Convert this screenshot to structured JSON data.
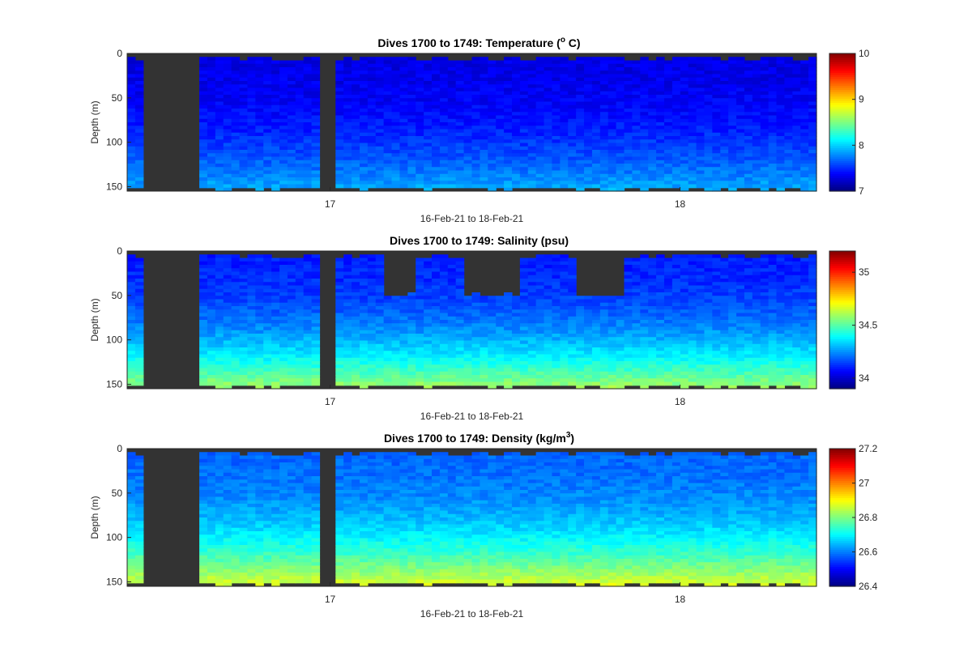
{
  "figure": {
    "x_axis_label": "16-Feb-21 to 18-Feb-21",
    "y_axis_label": "Depth (m)",
    "no_data_color": "#333333"
  },
  "chart_data": [
    {
      "type": "heatmap",
      "title_prefix": "Dives 1700 to 1749: Temperature (",
      "title_sup": "o",
      "title_suffix": " C)",
      "xlabel": "16-Feb-21 to 18-Feb-21",
      "ylabel": "Depth (m)",
      "x_range_days": [
        16.42,
        18.39
      ],
      "ylim": [
        0,
        155
      ],
      "y_ticks": [
        "0",
        "50",
        "100",
        "150"
      ],
      "x_ticks": [
        "17",
        "18"
      ],
      "colormap": "jet",
      "clim": [
        7,
        10
      ],
      "colorbar_ticks": [
        "7",
        "8",
        "9",
        "10"
      ],
      "surface_value": 7.3,
      "bottom_value": 7.9
    },
    {
      "type": "heatmap",
      "title_prefix": "Dives 1700 to 1749: Salinity (psu)",
      "title_sup": "",
      "title_suffix": "",
      "xlabel": "16-Feb-21 to 18-Feb-21",
      "ylabel": "Depth (m)",
      "x_range_days": [
        16.42,
        18.39
      ],
      "ylim": [
        0,
        155
      ],
      "y_ticks": [
        "0",
        "50",
        "100",
        "150"
      ],
      "x_ticks": [
        "17",
        "18"
      ],
      "colormap": "jet",
      "clim": [
        33.9,
        35.2
      ],
      "colorbar_ticks": [
        "34",
        "34.5",
        "35"
      ],
      "surface_value": 34.1,
      "bottom_value": 34.6
    },
    {
      "type": "heatmap",
      "title_prefix": "Dives 1700 to 1749: Density (kg/m",
      "title_sup": "3",
      "title_suffix": ")",
      "xlabel": "16-Feb-21 to 18-Feb-21",
      "ylabel": "Depth (m)",
      "x_range_days": [
        16.42,
        18.39
      ],
      "ylim": [
        0,
        155
      ],
      "y_ticks": [
        "0",
        "50",
        "100",
        "150"
      ],
      "x_ticks": [
        "17",
        "18"
      ],
      "colormap": "jet",
      "clim": [
        26.4,
        27.2
      ],
      "colorbar_ticks": [
        "26.4",
        "26.6",
        "26.8",
        "27",
        "27.2"
      ],
      "surface_value": 26.58,
      "bottom_value": 26.88
    }
  ]
}
